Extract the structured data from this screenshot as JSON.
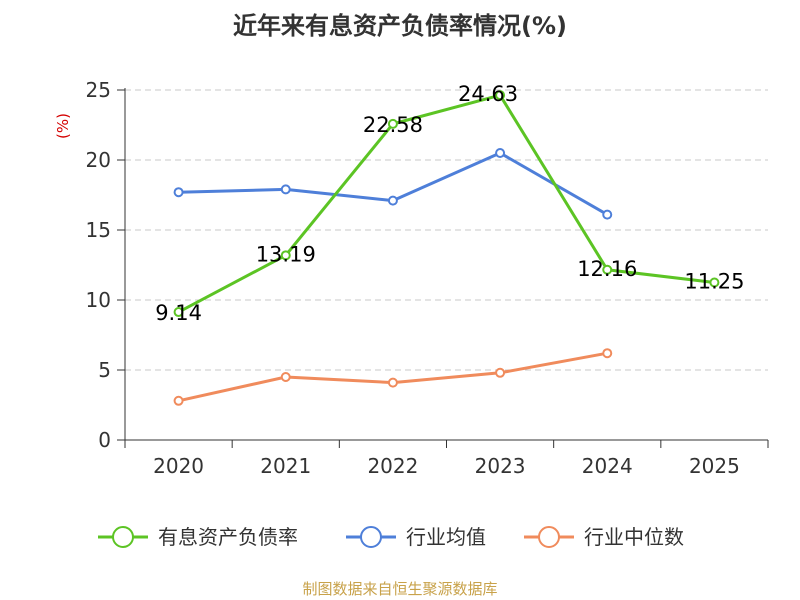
{
  "chart_data": {
    "type": "line",
    "title": "近年来有息资产负债率情况(%)",
    "y_unit": "(%)",
    "categories": [
      "2020",
      "2021",
      "2022",
      "2023",
      "2024",
      "2025"
    ],
    "ylim": [
      0,
      25
    ],
    "yticks": [
      "0",
      "5",
      "10",
      "15",
      "20",
      "25"
    ],
    "grid": true,
    "legend_position": "bottom",
    "series": [
      {
        "name": "有息资产负债率",
        "color": "#5cc424",
        "values": [
          9.14,
          13.19,
          22.58,
          24.63,
          12.16,
          11.25
        ],
        "labels": [
          "9.14",
          "13.19",
          "22.58",
          "24.63",
          "12.16",
          "11.25"
        ]
      },
      {
        "name": "行业均值",
        "color": "#4e7fd9",
        "values": [
          17.7,
          17.9,
          17.1,
          20.5,
          16.1,
          null
        ]
      },
      {
        "name": "行业中位数",
        "color": "#f08b5c",
        "values": [
          2.8,
          4.5,
          4.1,
          4.8,
          6.2,
          null
        ]
      }
    ],
    "source": "制图数据来自恒生聚源数据库"
  }
}
